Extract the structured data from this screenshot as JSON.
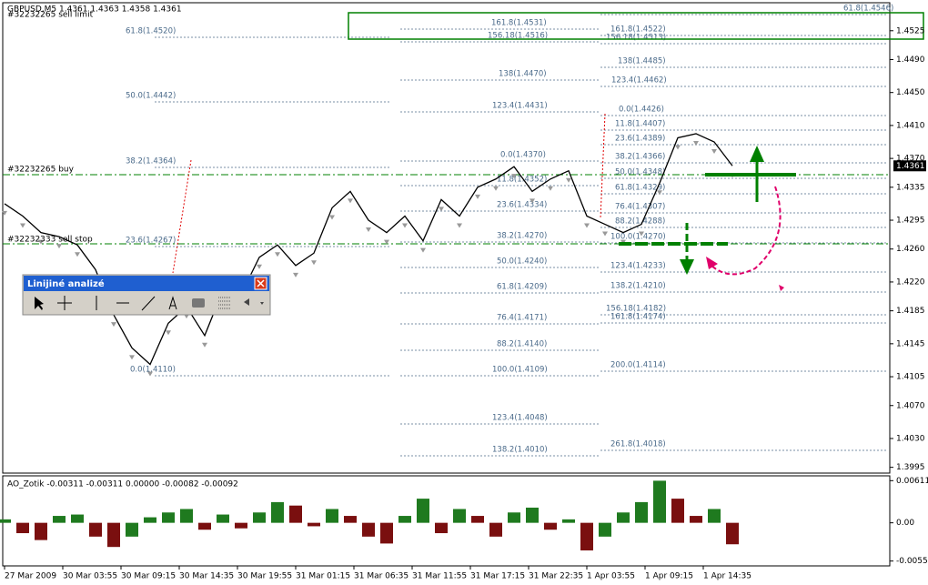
{
  "header": {
    "symbol_info": "GBPUSD,M5  1.4361 1.4363 1.4358 1.4361"
  },
  "price_chart": {
    "type": "line",
    "ylim": [
      1.3988,
      1.4559
    ],
    "yticks": [
      1.4525,
      {
        "value": 1.449,
        "label": "1.4490"
      },
      {
        "value": 1.445,
        "label": "1.4450"
      },
      {
        "value": 1.441,
        "label": "1.4410"
      },
      {
        "value": 1.437,
        "label": "1.4370"
      },
      1.4335,
      1.4295,
      {
        "value": 1.426,
        "label": "1.4260"
      },
      {
        "value": 1.422,
        "label": "1.4220"
      },
      1.4185,
      1.4145,
      1.4105,
      {
        "value": 1.407,
        "label": "1.4070"
      },
      {
        "value": 1.403,
        "label": "1.4030"
      },
      1.3995
    ],
    "values": [
      1.4315,
      1.43,
      1.428,
      1.4275,
      1.4265,
      1.4235,
      1.418,
      1.414,
      1.412,
      1.417,
      1.419,
      1.4155,
      1.421,
      1.4205,
      1.425,
      1.4265,
      1.424,
      1.4255,
      1.431,
      1.433,
      1.4295,
      1.428,
      1.43,
      1.427,
      1.432,
      1.43,
      1.4335,
      1.4345,
      1.436,
      1.433,
      1.4345,
      1.4355,
      1.43,
      1.429,
      1.428,
      1.429,
      1.434,
      1.4395,
      1.44,
      1.439,
      1.4361
    ],
    "current_price": 1.4361
  },
  "time_labels": [
    "27 Mar 2009",
    "30 Mar 03:55",
    "30 Mar 09:15",
    "30 Mar 14:35",
    "30 Mar 19:55",
    "31 Mar 01:15",
    "31 Mar 06:35",
    "31 Mar 11:55",
    "31 Mar 17:15",
    "31 Mar 22:35",
    "1 Apr 03:55",
    "1 Apr 09:15",
    "1 Apr 14:35"
  ],
  "order_labels": [
    "#32232265 sell limit",
    "#32232265 buy",
    "#32232333 sell stop"
  ],
  "fib_labels": [
    "61.8(1.4520)",
    "50.0(1.4442)",
    "38.2(1.4364)",
    "23.6(1.4267)",
    "0.0(1.4110)",
    "161.8(1.4531)",
    "156.18(1.4516)",
    "138(1.4470)",
    "123.4(1.4431)",
    "0.0(1.4370)",
    "11.8(1.4352)",
    "23.6(1.4334)",
    "38.2(1.4270)",
    "50.0(1.4240)",
    "61.8(1.4209)",
    "76.4(1.4171)",
    "88.2(1.4140)",
    "100.0(1.4109)",
    "123.4(1.4048)",
    "138.2(1.4010)",
    "161.8(1.4522)",
    "156.18(1.4513)",
    "138(1.4485)",
    "123.4(1.4462)",
    "0.0(1.4426)",
    "11.8(1.4407)",
    "23.6(1.4389)",
    "38.2(1.4366)",
    "50.0(1.4348)",
    "61.8(1.4329)",
    "76.4(1.4307)",
    "88.2(1.4288)",
    "100.0(1.4270)",
    "123.4(1.4233)",
    "138.2(1.4210)",
    "156.18(1.4182)",
    "161.8(1.4174)",
    "200.0(1.4114)",
    "261.8(1.4018)",
    "61.8(1.4546)"
  ],
  "indicator": {
    "type": "bar",
    "title": "AO_Zotik -0.00311 -0.00311 0.00000 -0.00082 -0.00092",
    "ylim": [
      -0.00598,
      0.00681
    ],
    "yticks": [
      0.00611,
      {
        "value": 0,
        "label": "0.00"
      },
      -0.00554
    ],
    "values": [
      0.0005,
      -0.0015,
      -0.0025,
      0.001,
      0.0012,
      -0.002,
      -0.0035,
      -0.002,
      0.0008,
      0.0015,
      0.002,
      -0.001,
      0.0012,
      -0.0008,
      0.0015,
      0.003,
      0.0025,
      -0.0005,
      0.002,
      0.001,
      -0.002,
      -0.003,
      0.001,
      0.0035,
      -0.0015,
      0.002,
      0.001,
      -0.002,
      0.0015,
      0.0022,
      -0.001,
      0.0005,
      -0.004,
      -0.002,
      0.0015,
      0.003,
      0.0061,
      0.0035,
      0.001,
      0.002,
      -0.00311
    ]
  },
  "toolbar": {
    "title": "Linijiné analizé"
  }
}
